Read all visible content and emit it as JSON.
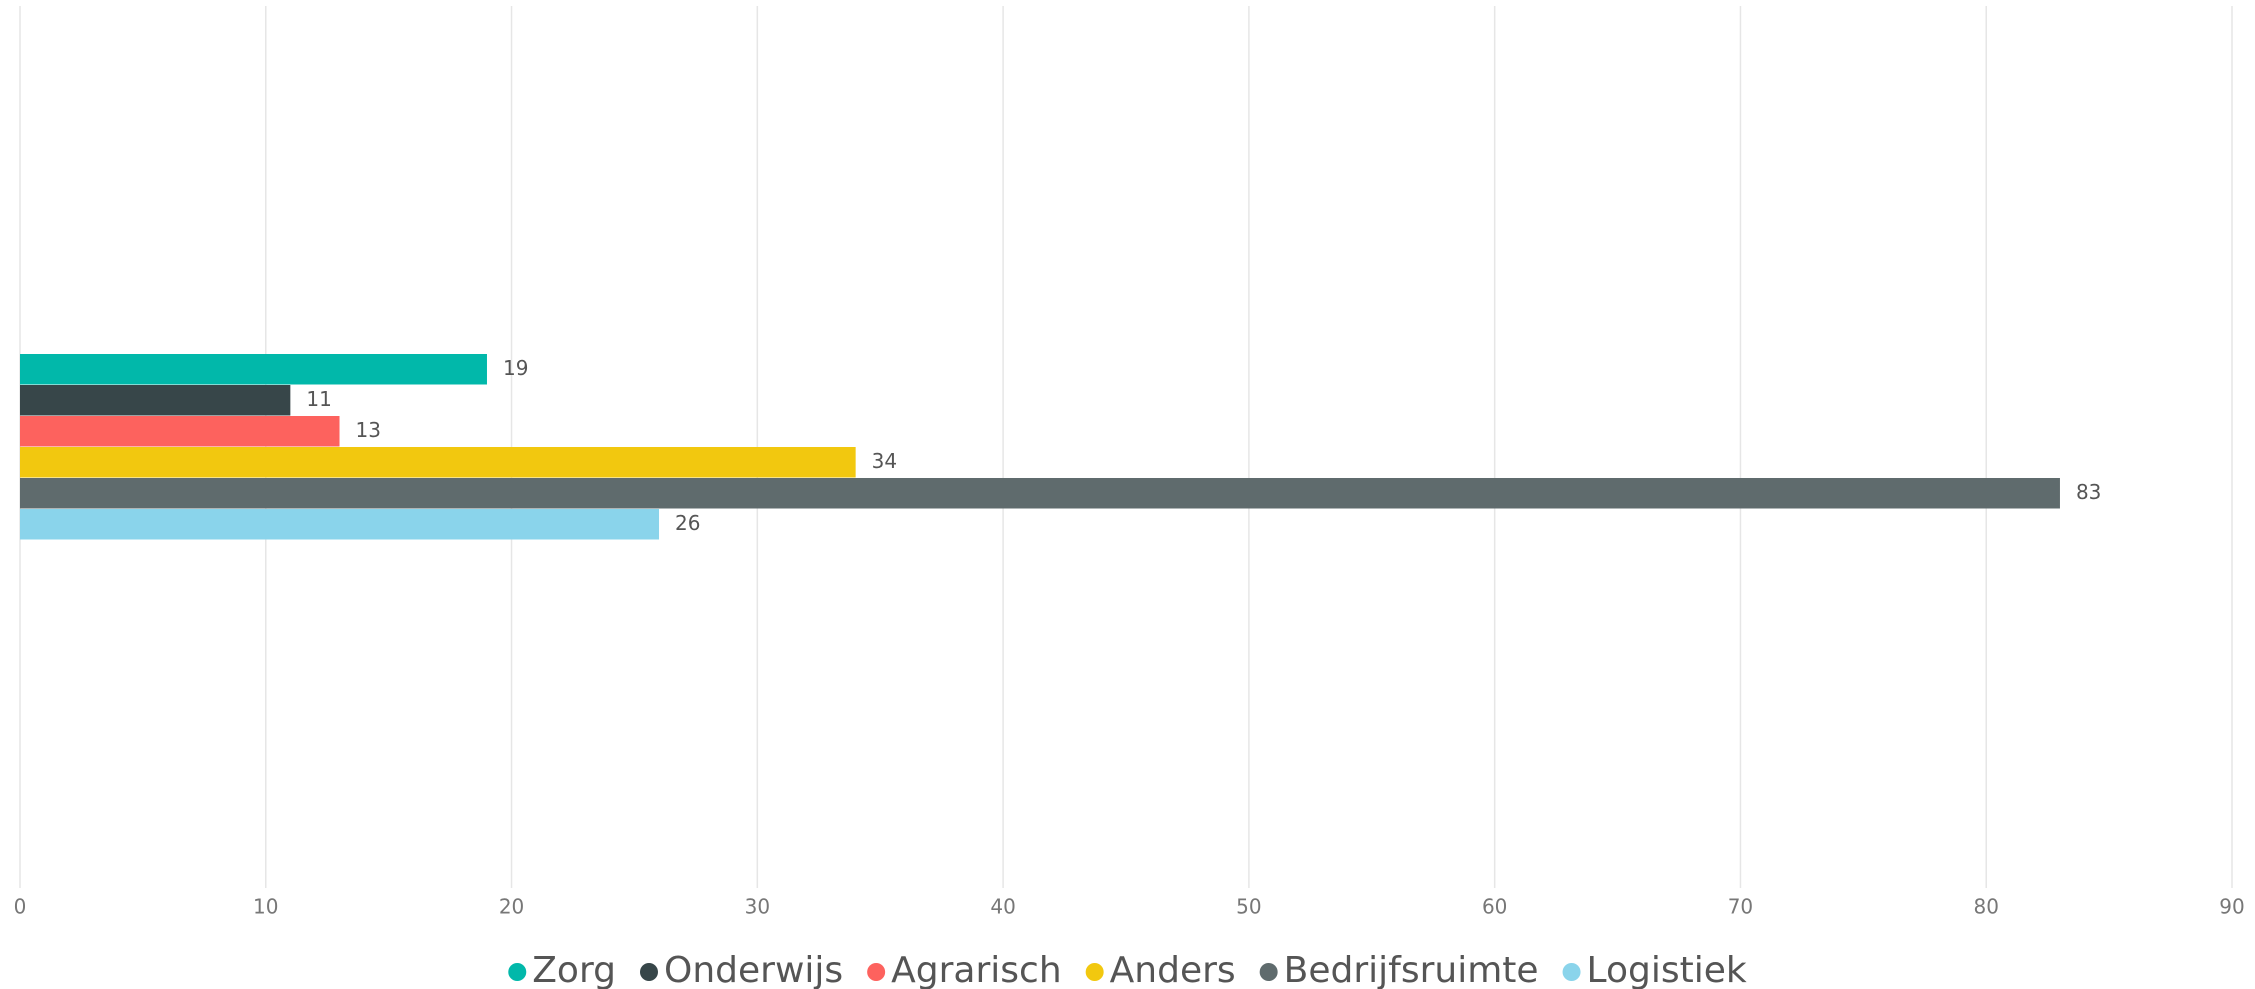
{
  "chart_data": {
    "type": "hbar",
    "categories": [
      null
    ],
    "series": [
      {
        "name": "Zorg",
        "color": "#01b8aa",
        "values": [
          19
        ]
      },
      {
        "name": "Onderwijs",
        "color": "#374649",
        "values": [
          11
        ]
      },
      {
        "name": "Agrarisch",
        "color": "#fd625e",
        "values": [
          13
        ]
      },
      {
        "name": "Anders",
        "color": "#f2c80f",
        "values": [
          34
        ]
      },
      {
        "name": "Bedrijfsruimte",
        "color": "#5f6b6d",
        "values": [
          83
        ]
      },
      {
        "name": "Logistiek",
        "color": "#8ad4eb",
        "values": [
          26
        ]
      }
    ],
    "xlim": [
      0,
      90
    ],
    "xticks": [
      0,
      10,
      20,
      30,
      40,
      50,
      60,
      70,
      80,
      90
    ],
    "grid": true,
    "legend": "bottom"
  }
}
